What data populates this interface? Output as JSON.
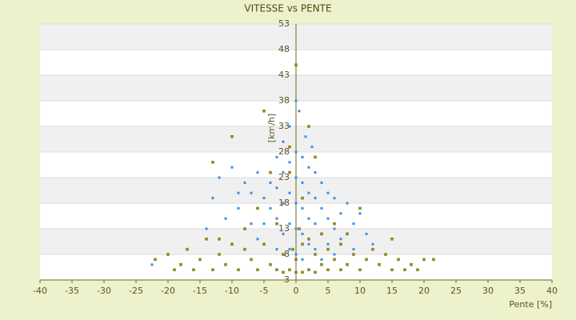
{
  "chart_data": {
    "type": "scatter",
    "title": "VITESSE vs PENTE",
    "x_label": "Pente [%]",
    "y_label": "[km/h]",
    "xlim": [
      -40,
      40
    ],
    "xticks": [
      -40,
      -35,
      -30,
      -25,
      -20,
      -15,
      -10,
      -5,
      0,
      5,
      10,
      15,
      20,
      25,
      30,
      35,
      40
    ],
    "ylim": [
      3,
      53
    ],
    "yticks": [
      3,
      8,
      13,
      18,
      23,
      28,
      33,
      38,
      43,
      48,
      53
    ],
    "grid": true,
    "series": [
      {
        "color": "#3a8fe0",
        "x": [
          -22.5,
          -12,
          -10,
          -8,
          -9,
          -11,
          -7,
          -6,
          -5,
          -5,
          -4,
          -4,
          -3,
          -3,
          -3,
          -2,
          -2,
          -2,
          -2,
          -1,
          -1,
          -1,
          -1,
          -1,
          0,
          0,
          0,
          0,
          0,
          0,
          0.5,
          1,
          1,
          1,
          1,
          1,
          1.5,
          2,
          2,
          2,
          2,
          2.5,
          3,
          3,
          3,
          3,
          4,
          4,
          4,
          5,
          5,
          5,
          6,
          6,
          7,
          7,
          8,
          8,
          9,
          10,
          11,
          12,
          -6,
          -7,
          -9,
          -13,
          -14,
          -3,
          4,
          6,
          9
        ],
        "values": [
          6,
          23,
          25,
          22,
          17,
          15,
          20,
          24,
          19,
          14,
          22,
          17,
          27,
          21,
          15,
          30,
          24,
          18,
          12,
          33,
          26,
          20,
          14,
          9,
          38,
          28,
          23,
          18,
          13,
          8,
          36,
          27,
          22,
          17,
          12,
          7,
          31,
          25,
          20,
          15,
          10,
          29,
          24,
          19,
          14,
          9,
          22,
          17,
          12,
          20,
          15,
          10,
          19,
          13,
          16,
          11,
          18,
          12,
          14,
          16,
          12,
          10,
          11,
          14,
          20,
          19,
          13,
          9,
          7,
          8,
          9
        ]
      },
      {
        "color": "#9a9a10",
        "x": [
          -22,
          -20,
          -19,
          -18,
          -17,
          -16,
          -15,
          -14,
          -13,
          -13,
          -12,
          -11,
          -10,
          -10,
          -9,
          -8,
          -7,
          -6,
          -6,
          -5,
          -5,
          -4,
          -4,
          -3,
          -3,
          -2,
          -2,
          -1,
          -1,
          0,
          0,
          0,
          1,
          1,
          2,
          2,
          3,
          3,
          4,
          4,
          5,
          5,
          6,
          6,
          7,
          7,
          8,
          8,
          9,
          10,
          10,
          11,
          12,
          13,
          14,
          15,
          15,
          16,
          17,
          18,
          19,
          20,
          21.5,
          -1,
          1,
          3,
          -8,
          -12,
          -0.5,
          0.5,
          2
        ],
        "values": [
          7,
          8,
          5,
          6,
          9,
          5,
          7,
          11,
          5,
          26,
          8,
          6,
          31,
          10,
          5,
          13,
          7,
          17,
          5,
          36,
          10,
          6,
          24,
          14,
          5,
          8,
          4.5,
          5,
          29,
          4.5,
          45,
          7,
          4.5,
          10,
          5,
          33,
          4.5,
          8,
          6,
          12,
          5,
          9,
          7,
          14,
          5,
          10,
          6,
          12,
          8,
          5,
          17,
          7,
          9,
          6,
          8,
          5,
          11,
          7,
          5,
          6,
          5,
          7,
          7,
          24,
          19,
          27,
          9,
          11,
          9,
          13,
          11
        ]
      }
    ]
  }
}
